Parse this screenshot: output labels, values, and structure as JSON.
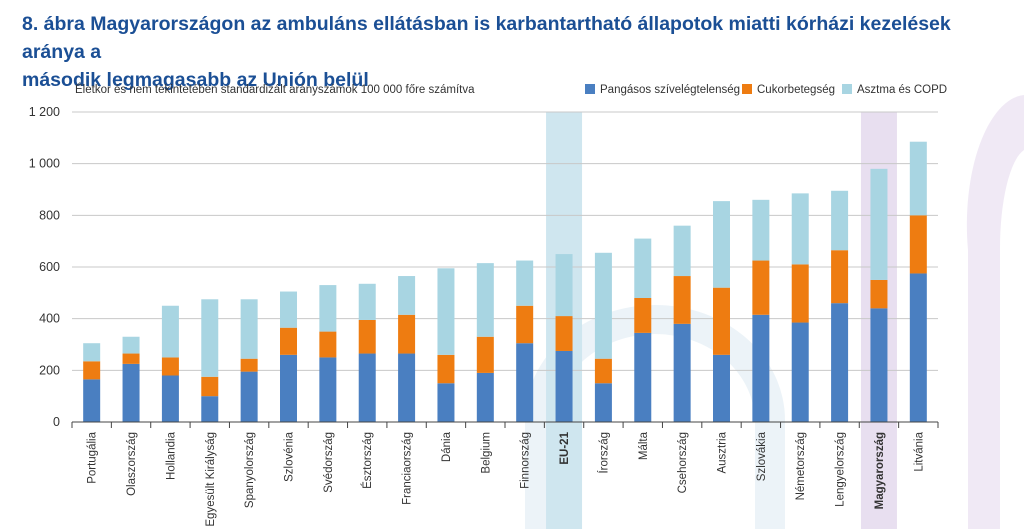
{
  "title": {
    "line1": "8. ábra Magyarországon az ambuláns ellátásban is karbantartható állapotok miatti kórházi kezelések aránya a",
    "line2": "második legmagasabb az Unión belül"
  },
  "colors": {
    "title": "#1b4f95",
    "series": [
      "#4a7fc1",
      "#ee7c11",
      "#a8d5e2"
    ],
    "highlight_eu": "#cfe6ef",
    "highlight_hu": "#e8dff0",
    "decor_arc": "#dde9f3",
    "decor_arc_purple": "#ece3f2"
  },
  "chart_data": {
    "type": "bar",
    "stacked": true,
    "title": "8. ábra Magyarországon az ambuláns ellátásban is karbantartható állapotok miatti kórházi kezelések aránya a második legmagasabb az Unión belül",
    "subtitle": "Életkor és nem tekintetében standardizált arányszámok 100 000 főre számítva",
    "xlabel": "",
    "ylabel": "",
    "ylim": [
      0,
      1200
    ],
    "yticks": [
      0,
      200,
      400,
      600,
      800,
      1000,
      1200
    ],
    "ytick_labels": [
      "0",
      "200",
      "400",
      "600",
      "800",
      "1 000",
      "1 200"
    ],
    "grid": true,
    "legend_position": "top-right",
    "categories": [
      "Portugália",
      "Olaszország",
      "Hollandia",
      "Egyesült Királyság",
      "Spanyolország",
      "Szlovénia",
      "Svédország",
      "Észtország",
      "Franciaország",
      "Dánia",
      "Belgium",
      "Finnország",
      "EU-21",
      "Írország",
      "Málta",
      "Csehország",
      "Ausztria",
      "Szlovákia",
      "Németország",
      "Lengyelország",
      "Magyarország",
      "Litvánia"
    ],
    "highlighted": [
      "EU-21",
      "Magyarország"
    ],
    "series": [
      {
        "name": "Pangásos szívelégtelenség",
        "values": [
          165,
          225,
          180,
          100,
          195,
          260,
          250,
          265,
          265,
          150,
          190,
          305,
          275,
          150,
          345,
          380,
          260,
          415,
          385,
          460,
          440,
          575
        ]
      },
      {
        "name": "Cukorbetegség",
        "values": [
          70,
          40,
          70,
          75,
          50,
          105,
          100,
          130,
          150,
          110,
          140,
          145,
          135,
          95,
          135,
          185,
          260,
          210,
          225,
          205,
          110,
          225
        ]
      },
      {
        "name": "Asztma és COPD",
        "values": [
          70,
          65,
          200,
          300,
          230,
          140,
          180,
          140,
          150,
          335,
          285,
          175,
          240,
          410,
          230,
          195,
          335,
          235,
          275,
          230,
          430,
          285
        ]
      }
    ]
  }
}
